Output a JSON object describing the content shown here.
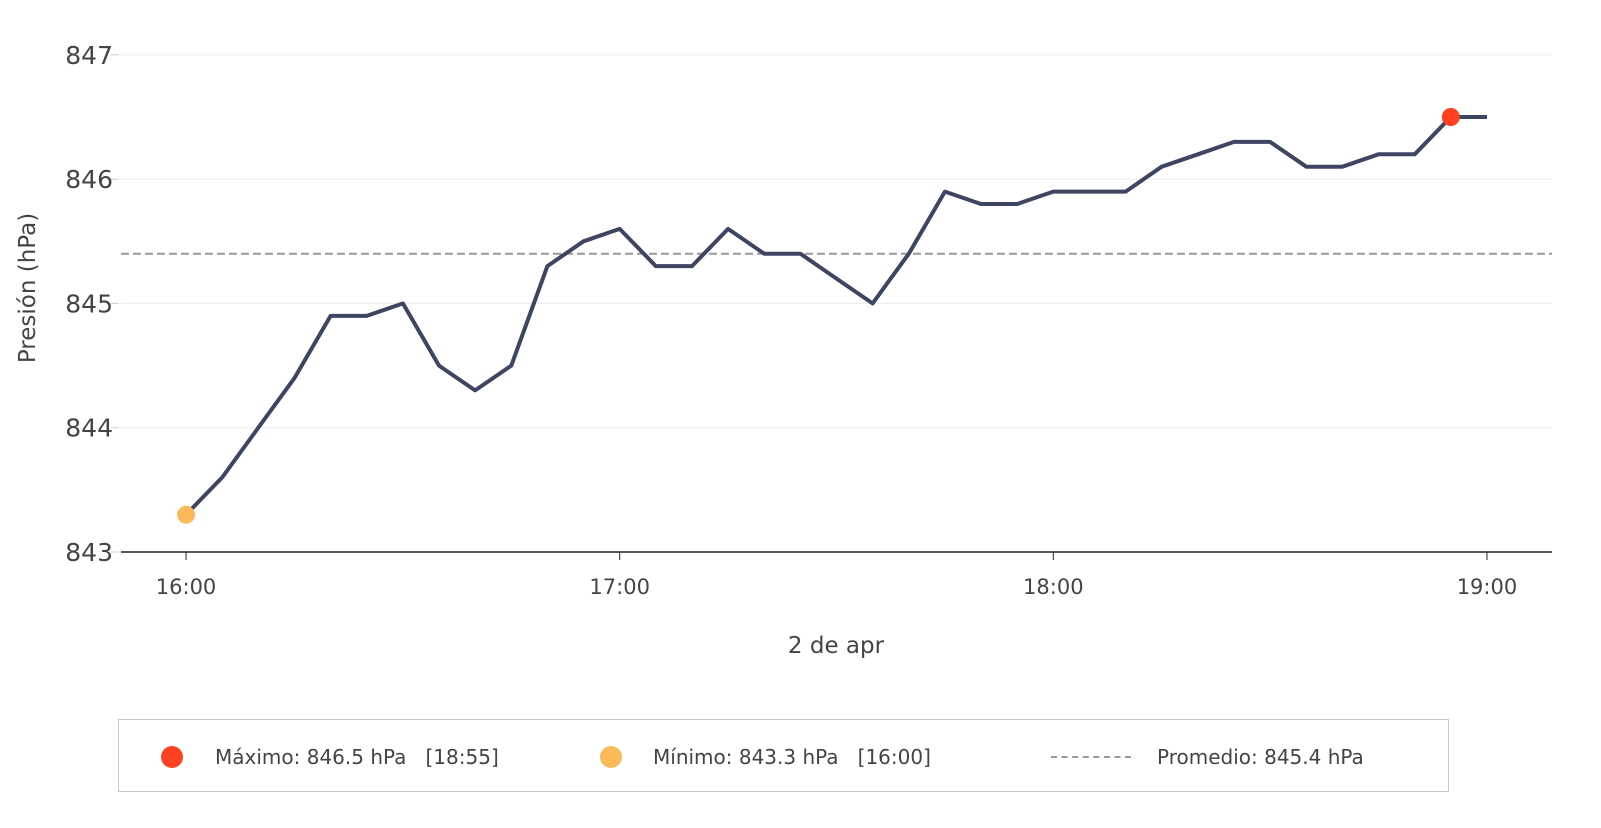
{
  "chart_data": {
    "type": "line",
    "title": "",
    "xlabel": "2 de apr",
    "ylabel": "Presión (hPa)",
    "ylim": [
      843,
      847
    ],
    "yticks": [
      "843",
      "844",
      "845",
      "846",
      "847"
    ],
    "xlim": [
      "15:51",
      "19:09"
    ],
    "xticks": [
      "16:00",
      "17:00",
      "18:00",
      "19:00"
    ],
    "grid": "horizontal",
    "series": [
      {
        "color": "#3e4560",
        "x": [
          "16:00",
          "16:05",
          "16:10",
          "16:15",
          "16:20",
          "16:25",
          "16:30",
          "16:35",
          "16:40",
          "16:45",
          "16:50",
          "16:55",
          "17:00",
          "17:05",
          "17:10",
          "17:15",
          "17:20",
          "17:25",
          "17:30",
          "17:35",
          "17:40",
          "17:45",
          "17:50",
          "17:55",
          "18:00",
          "18:05",
          "18:10",
          "18:15",
          "18:20",
          "18:25",
          "18:30",
          "18:35",
          "18:40",
          "18:45",
          "18:50",
          "18:55",
          "19:00"
        ],
        "y": [
          843.3,
          843.6,
          844.0,
          844.4,
          844.9,
          844.9,
          845.0,
          844.5,
          844.3,
          844.5,
          845.3,
          845.5,
          845.6,
          845.3,
          845.3,
          845.6,
          845.4,
          845.4,
          845.2,
          845.0,
          845.4,
          845.9,
          845.8,
          845.8,
          845.9,
          845.9,
          845.9,
          846.1,
          846.2,
          846.3,
          846.3,
          846.1,
          846.1,
          846.2,
          846.2,
          846.5,
          846.5
        ]
      }
    ],
    "average": {
      "value": 845.4,
      "color": "#999999"
    },
    "max_point": {
      "x": "18:55",
      "y": 846.5,
      "color": "#ff4122"
    },
    "min_point": {
      "x": "16:00",
      "y": 843.3,
      "color": "#fbba5a"
    }
  },
  "legend": {
    "max_text": "Máximo: 846.5 hPa   [18:55]",
    "min_text": "Mínimo: 843.3 hPa   [16:00]",
    "avg_text": "Promedio: 845.4 hPa",
    "max_color": "#ff4122",
    "min_color": "#fbba5a"
  }
}
